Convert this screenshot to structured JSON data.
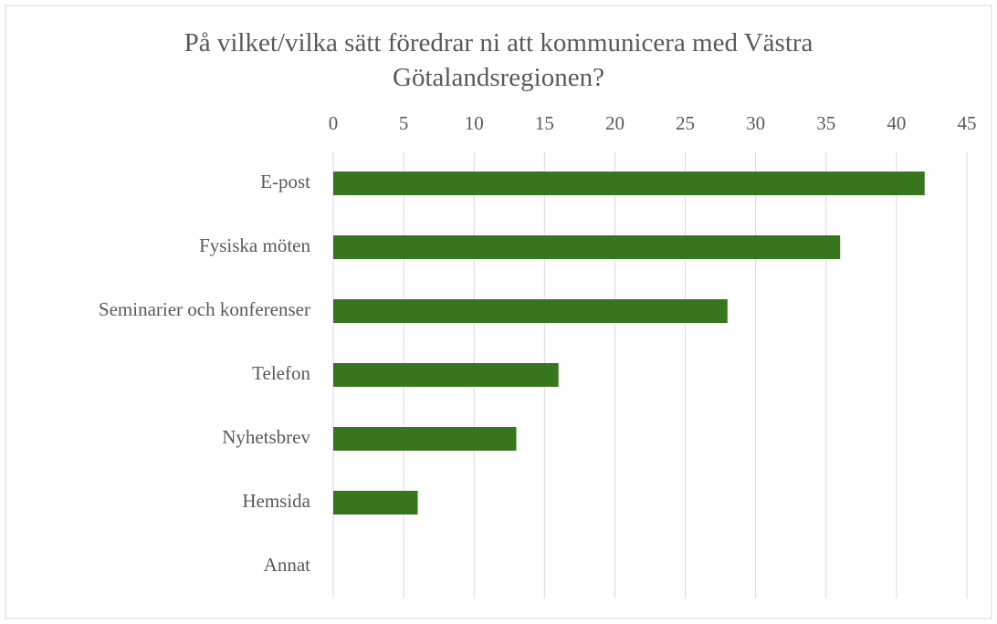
{
  "chart_data": {
    "type": "bar",
    "orientation": "horizontal",
    "title": "På vilket/vilka sätt föredrar ni att kommunicera med Västra Götalandsregionen?",
    "categories": [
      "E-post",
      "Fysiska möten",
      "Seminarier och konferenser",
      "Telefon",
      "Nyhetsbrev",
      "Hemsida",
      "Annat"
    ],
    "values": [
      42,
      36,
      28,
      16,
      13,
      6,
      0
    ],
    "color": "#38761d",
    "xlim": [
      0,
      45
    ],
    "xticks": [
      0,
      5,
      10,
      15,
      20,
      25,
      30,
      35,
      40,
      45
    ],
    "grid": true
  }
}
